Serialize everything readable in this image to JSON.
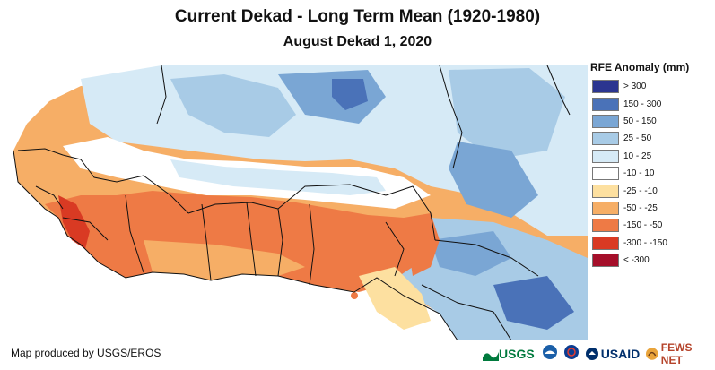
{
  "title": "Current Dekad - Long Term Mean (1920-1980)",
  "subtitle": "August Dekad 1, 2020",
  "legend": {
    "title": "RFE Anomaly (mm)",
    "items": [
      {
        "label": "> 300",
        "color": "#2b3590"
      },
      {
        "label": "150 - 300",
        "color": "#4a72b8"
      },
      {
        "label": "50 - 150",
        "color": "#7aa6d4"
      },
      {
        "label": "25 - 50",
        "color": "#a8cbe6"
      },
      {
        "label": "10 - 25",
        "color": "#d6eaf6"
      },
      {
        "label": "-10 - 10",
        "color": "#ffffff"
      },
      {
        "label": "-25 - -10",
        "color": "#fde0a0"
      },
      {
        "label": "-50 - -25",
        "color": "#f6ae66"
      },
      {
        "label": "-150 - -50",
        "color": "#ee7a45"
      },
      {
        "label": "-300 - -150",
        "color": "#d93a23"
      },
      {
        "label": "< -300",
        "color": "#a50f2a"
      }
    ]
  },
  "credit": "Map produced by USGS/EROS",
  "logos": {
    "usgs": "USGS",
    "usaid": "USAID",
    "fewsnet": "FEWS NET"
  }
}
